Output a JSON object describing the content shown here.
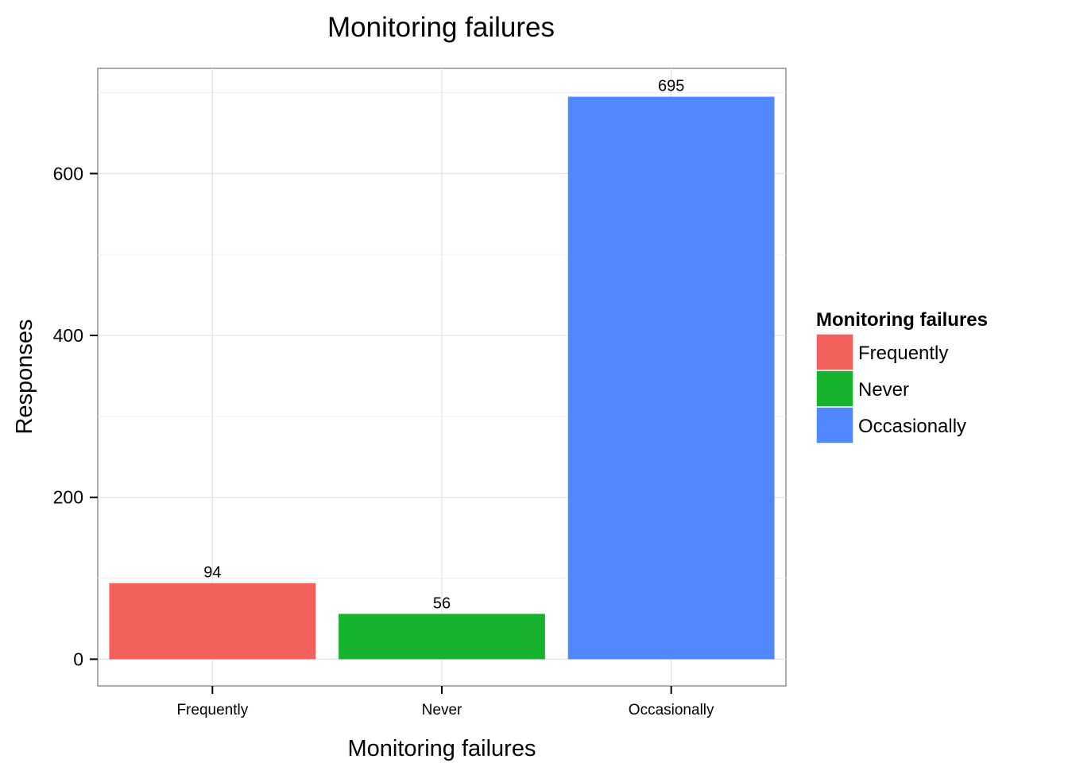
{
  "chart_data": {
    "type": "bar",
    "title": "Monitoring failures",
    "xlabel": "Monitoring failures",
    "ylabel": "Responses",
    "categories": [
      "Frequently",
      "Never",
      "Occasionally"
    ],
    "values": [
      94,
      56,
      695
    ],
    "data_labels": [
      "94",
      "56",
      "695"
    ],
    "colors": [
      "#F2615B",
      "#17B32F",
      "#5288FF"
    ],
    "ylim": [
      -33,
      730
    ],
    "yticks": [
      0,
      200,
      400,
      600
    ],
    "ytick_labels": [
      "0",
      "200",
      "400",
      "600"
    ],
    "grid": true,
    "legend": {
      "title": "Monitoring failures",
      "placement": "right",
      "entries": [
        "Frequently",
        "Never",
        "Occasionally"
      ]
    }
  }
}
